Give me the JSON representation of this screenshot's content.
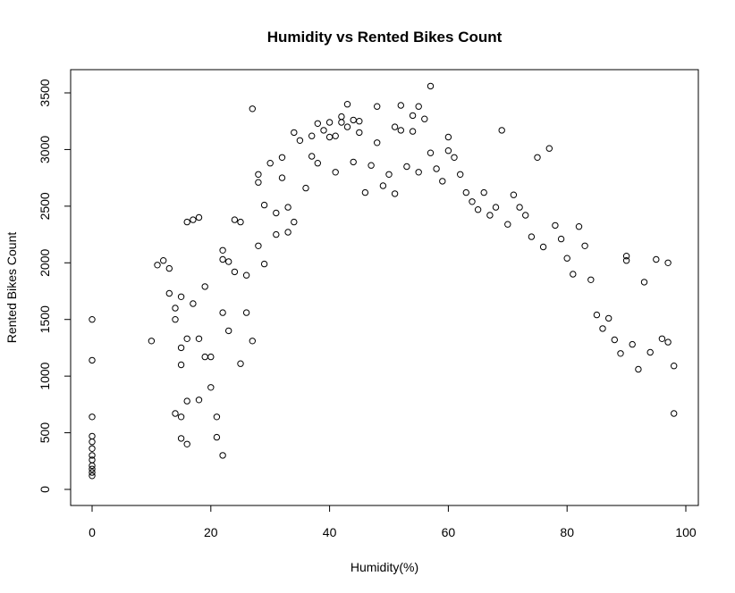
{
  "chart_data": {
    "type": "scatter",
    "title": "Humidity vs Rented Bikes Count",
    "xlabel": "Humidity(%)",
    "ylabel": "Rented Bikes Count",
    "xlim": [
      0,
      100
    ],
    "ylim": [
      0,
      3500
    ],
    "x_ticks": [
      0,
      20,
      40,
      60,
      80,
      100
    ],
    "y_ticks": [
      0,
      500,
      1000,
      1500,
      2000,
      2500,
      3000,
      3500
    ],
    "x_tick_labels": [
      "0",
      "20",
      "40",
      "60",
      "80",
      "100"
    ],
    "y_tick_labels": [
      "0",
      "500",
      "1000",
      "1500",
      "2000",
      "2500",
      "3000",
      "3500"
    ],
    "grid": false,
    "marker": "open-circle",
    "marker_color": "#000000",
    "series": [
      {
        "points": [
          [
            0,
            120
          ],
          [
            0,
            150
          ],
          [
            0,
            180
          ],
          [
            0,
            210
          ],
          [
            0,
            260
          ],
          [
            0,
            300
          ],
          [
            0,
            360
          ],
          [
            0,
            420
          ],
          [
            0,
            470
          ],
          [
            0,
            640
          ],
          [
            0,
            1140
          ],
          [
            0,
            1500
          ],
          [
            10,
            1310
          ],
          [
            11,
            1980
          ],
          [
            12,
            2020
          ],
          [
            13,
            1950
          ],
          [
            13,
            1730
          ],
          [
            14,
            670
          ],
          [
            14,
            1500
          ],
          [
            14,
            1600
          ],
          [
            15,
            1700
          ],
          [
            15,
            1250
          ],
          [
            15,
            1100
          ],
          [
            15,
            640
          ],
          [
            15,
            450
          ],
          [
            16,
            2360
          ],
          [
            16,
            1330
          ],
          [
            16,
            780
          ],
          [
            16,
            400
          ],
          [
            17,
            2380
          ],
          [
            17,
            1640
          ],
          [
            18,
            2400
          ],
          [
            18,
            1330
          ],
          [
            18,
            790
          ],
          [
            19,
            1790
          ],
          [
            19,
            1170
          ],
          [
            20,
            1170
          ],
          [
            20,
            900
          ],
          [
            21,
            640
          ],
          [
            21,
            460
          ],
          [
            22,
            2110
          ],
          [
            22,
            2030
          ],
          [
            22,
            1560
          ],
          [
            22,
            300
          ],
          [
            23,
            2010
          ],
          [
            23,
            1400
          ],
          [
            24,
            2380
          ],
          [
            24,
            1920
          ],
          [
            25,
            1110
          ],
          [
            25,
            2360
          ],
          [
            26,
            1890
          ],
          [
            26,
            1560
          ],
          [
            27,
            3360
          ],
          [
            27,
            1310
          ],
          [
            28,
            2780
          ],
          [
            28,
            2710
          ],
          [
            28,
            2150
          ],
          [
            29,
            2510
          ],
          [
            29,
            1990
          ],
          [
            30,
            2880
          ],
          [
            31,
            2440
          ],
          [
            31,
            2250
          ],
          [
            32,
            2930
          ],
          [
            32,
            2750
          ],
          [
            33,
            2490
          ],
          [
            33,
            2270
          ],
          [
            34,
            3150
          ],
          [
            34,
            2360
          ],
          [
            35,
            3080
          ],
          [
            36,
            2660
          ],
          [
            37,
            3120
          ],
          [
            37,
            2940
          ],
          [
            38,
            3230
          ],
          [
            38,
            2880
          ],
          [
            39,
            3170
          ],
          [
            40,
            3240
          ],
          [
            40,
            3110
          ],
          [
            41,
            3120
          ],
          [
            41,
            2800
          ],
          [
            42,
            3290
          ],
          [
            42,
            3240
          ],
          [
            43,
            3400
          ],
          [
            43,
            3200
          ],
          [
            44,
            3260
          ],
          [
            44,
            2890
          ],
          [
            45,
            3250
          ],
          [
            45,
            3150
          ],
          [
            46,
            2620
          ],
          [
            47,
            2860
          ],
          [
            48,
            3380
          ],
          [
            48,
            3060
          ],
          [
            49,
            2680
          ],
          [
            50,
            2780
          ],
          [
            51,
            3200
          ],
          [
            51,
            2610
          ],
          [
            52,
            3170
          ],
          [
            52,
            3390
          ],
          [
            53,
            2850
          ],
          [
            54,
            3300
          ],
          [
            54,
            3160
          ],
          [
            55,
            3380
          ],
          [
            55,
            2800
          ],
          [
            56,
            3270
          ],
          [
            57,
            3560
          ],
          [
            57,
            2970
          ],
          [
            58,
            2830
          ],
          [
            59,
            2720
          ],
          [
            60,
            3110
          ],
          [
            60,
            2990
          ],
          [
            61,
            2930
          ],
          [
            62,
            2780
          ],
          [
            63,
            2620
          ],
          [
            64,
            2540
          ],
          [
            65,
            2470
          ],
          [
            66,
            2620
          ],
          [
            67,
            2420
          ],
          [
            68,
            2490
          ],
          [
            69,
            3170
          ],
          [
            70,
            2340
          ],
          [
            71,
            2600
          ],
          [
            72,
            2490
          ],
          [
            73,
            2420
          ],
          [
            74,
            2230
          ],
          [
            75,
            2930
          ],
          [
            76,
            2140
          ],
          [
            77,
            3010
          ],
          [
            78,
            2330
          ],
          [
            79,
            2210
          ],
          [
            80,
            2040
          ],
          [
            81,
            1900
          ],
          [
            82,
            2320
          ],
          [
            83,
            2150
          ],
          [
            84,
            1850
          ],
          [
            85,
            1540
          ],
          [
            86,
            1420
          ],
          [
            87,
            1510
          ],
          [
            88,
            1320
          ],
          [
            89,
            1200
          ],
          [
            90,
            2020
          ],
          [
            90,
            2060
          ],
          [
            91,
            1280
          ],
          [
            92,
            1060
          ],
          [
            93,
            1830
          ],
          [
            94,
            1210
          ],
          [
            95,
            2030
          ],
          [
            96,
            1330
          ],
          [
            97,
            1300
          ],
          [
            97,
            2000
          ],
          [
            98,
            1090
          ],
          [
            98,
            670
          ]
        ]
      }
    ]
  }
}
